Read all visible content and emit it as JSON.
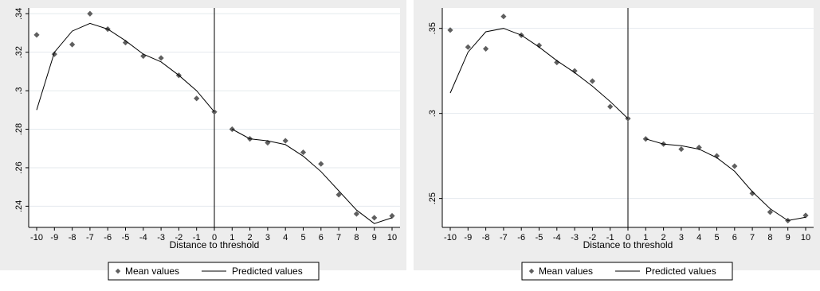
{
  "chart_data": [
    {
      "type": "scatter",
      "xlabel": "Distance to threshold",
      "ylabel": "",
      "xlim": [
        -10,
        10
      ],
      "ylim": [
        0.229,
        0.343
      ],
      "xticks": [
        "-10",
        "-9",
        "-8",
        "-7",
        "-6",
        "-5",
        "-4",
        "-3",
        "-2",
        "-1",
        "0",
        "1",
        "2",
        "3",
        "4",
        "5",
        "6",
        "7",
        "8",
        "9",
        "10"
      ],
      "yticks": [
        {
          "v": 0.24,
          "label": ".24"
        },
        {
          "v": 0.26,
          "label": ".26"
        },
        {
          "v": 0.28,
          "label": ".28"
        },
        {
          "v": 0.3,
          "label": ".3"
        },
        {
          "v": 0.32,
          "label": ".32"
        },
        {
          "v": 0.34,
          "label": ".34"
        }
      ],
      "threshold_line_x": 0,
      "legend": [
        "Mean values",
        "Predicted values"
      ],
      "legend_position": "bottom",
      "grid": true,
      "series": [
        {
          "name": "Mean values",
          "kind": "points",
          "x": [
            -10,
            -9,
            -8,
            -7,
            -6,
            -5,
            -4,
            -3,
            -2,
            -1,
            0,
            1,
            2,
            3,
            4,
            5,
            6,
            7,
            8,
            9,
            10
          ],
          "y": [
            0.329,
            0.319,
            0.324,
            0.34,
            0.332,
            0.325,
            0.318,
            0.317,
            0.308,
            0.296,
            0.289,
            0.28,
            0.275,
            0.273,
            0.274,
            0.268,
            0.262,
            0.246,
            0.236,
            0.234,
            0.235
          ]
        },
        {
          "name": "Predicted values",
          "kind": "line",
          "segments": [
            {
              "x": [
                -10,
                -9,
                -8,
                -7,
                -6,
                -5,
                -4,
                -3,
                -2,
                -1,
                0
              ],
              "y": [
                0.29,
                0.32,
                0.331,
                0.335,
                0.332,
                0.326,
                0.319,
                0.315,
                0.308,
                0.3,
                0.289
              ]
            },
            {
              "x": [
                1,
                2,
                3,
                4,
                5,
                6,
                7,
                8,
                9,
                10
              ],
              "y": [
                0.28,
                0.275,
                0.274,
                0.272,
                0.266,
                0.258,
                0.248,
                0.238,
                0.231,
                0.234
              ]
            }
          ]
        }
      ]
    },
    {
      "type": "scatter",
      "xlabel": "Distance to threshold",
      "ylabel": "",
      "xlim": [
        -10,
        10
      ],
      "ylim": [
        0.233,
        0.362
      ],
      "xticks": [
        "-10",
        "-9",
        "-8",
        "-7",
        "-6",
        "-5",
        "-4",
        "-3",
        "-2",
        "-1",
        "0",
        "1",
        "2",
        "3",
        "4",
        "5",
        "6",
        "7",
        "8",
        "9",
        "10"
      ],
      "yticks": [
        {
          "v": 0.25,
          "label": ".25"
        },
        {
          "v": 0.3,
          "label": ".3"
        },
        {
          "v": 0.35,
          "label": ".35"
        }
      ],
      "threshold_line_x": 0,
      "legend": [
        "Mean values",
        "Predicted values"
      ],
      "legend_position": "bottom",
      "grid": true,
      "series": [
        {
          "name": "Mean values",
          "kind": "points",
          "x": [
            -10,
            -9,
            -8,
            -7,
            -6,
            -5,
            -4,
            -3,
            -2,
            -1,
            0,
            1,
            2,
            3,
            4,
            5,
            6,
            7,
            8,
            9,
            10
          ],
          "y": [
            0.349,
            0.339,
            0.338,
            0.357,
            0.346,
            0.34,
            0.33,
            0.325,
            0.319,
            0.304,
            0.297,
            0.285,
            0.282,
            0.279,
            0.28,
            0.275,
            0.269,
            0.253,
            0.242,
            0.237,
            0.24
          ]
        },
        {
          "name": "Predicted values",
          "kind": "line",
          "segments": [
            {
              "x": [
                -10,
                -9,
                -8,
                -7,
                -6,
                -5,
                -4,
                -3,
                -2,
                -1,
                0
              ],
              "y": [
                0.312,
                0.336,
                0.348,
                0.35,
                0.346,
                0.339,
                0.331,
                0.324,
                0.316,
                0.307,
                0.297
              ]
            },
            {
              "x": [
                1,
                2,
                3,
                4,
                5,
                6,
                7,
                8,
                9,
                10
              ],
              "y": [
                0.285,
                0.282,
                0.281,
                0.279,
                0.274,
                0.266,
                0.254,
                0.244,
                0.237,
                0.239
              ]
            }
          ]
        }
      ]
    }
  ]
}
